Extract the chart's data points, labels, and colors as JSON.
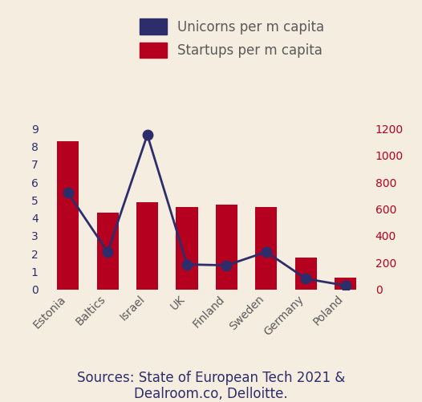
{
  "categories": [
    "Estonia",
    "Baltics",
    "Israel",
    "UK",
    "Finland",
    "Sweden",
    "Germany",
    "Poland"
  ],
  "bar_values": [
    8.3,
    4.3,
    4.9,
    4.6,
    4.75,
    4.6,
    1.8,
    0.65
  ],
  "line_values": [
    5.4,
    2.1,
    8.65,
    1.4,
    1.35,
    2.1,
    0.6,
    0.22
  ],
  "bar_color": "#b5001f",
  "line_color": "#2e2d6b",
  "background_color": "#f5ede0",
  "left_ylim": [
    0,
    9
  ],
  "right_ylim": [
    0,
    1200
  ],
  "left_yticks": [
    0,
    1,
    2,
    3,
    4,
    5,
    6,
    7,
    8,
    9
  ],
  "right_yticks": [
    0,
    200,
    400,
    600,
    800,
    1000,
    1200
  ],
  "legend_unicorn": "Unicorns per m capita",
  "legend_startup": "Startups per m capita",
  "source_line1": "Sources: State of European Tech 2021 &",
  "source_line2": "Dealroom.co, Delloitte.",
  "left_tick_color": "#2e2d6b",
  "right_tick_color": "#b5001f",
  "label_color": "#5a5a5a",
  "legend_fontsize": 12,
  "tick_fontsize": 10,
  "source_fontsize": 12,
  "bar_width": 0.55
}
